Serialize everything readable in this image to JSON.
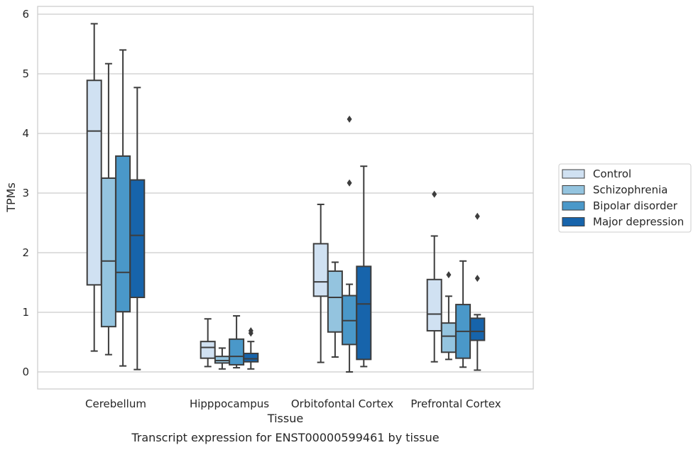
{
  "caption": "Transcript expression for ENST00000599461 by tissue",
  "chart_data": {
    "type": "box",
    "title": "",
    "xlabel": "Tissue",
    "ylabel": "TPMs",
    "ylim": [
      -0.28,
      6.13
    ],
    "yticks": [
      0,
      1,
      2,
      3,
      4,
      5,
      6
    ],
    "grid": true,
    "legend_position": "right",
    "categories": [
      "Cerebellum",
      "Hipppocampus",
      "Orbitofontal Cortex",
      "Prefrontal Cortex"
    ],
    "series": [
      {
        "name": "Control",
        "color": "#d0e1f2",
        "boxes": [
          {
            "whislo": 0.35,
            "q1": 1.46,
            "med": 4.04,
            "q3": 4.89,
            "whishi": 5.84,
            "fliers": []
          },
          {
            "whislo": 0.09,
            "q1": 0.23,
            "med": 0.41,
            "q3": 0.51,
            "whishi": 0.89,
            "fliers": []
          },
          {
            "whislo": 0.16,
            "q1": 1.27,
            "med": 1.51,
            "q3": 2.15,
            "whishi": 2.81,
            "fliers": []
          },
          {
            "whislo": 0.17,
            "q1": 0.69,
            "med": 0.97,
            "q3": 1.55,
            "whishi": 2.28,
            "fliers": [
              2.98
            ]
          }
        ]
      },
      {
        "name": "Schizophrenia",
        "color": "#94c4df",
        "boxes": [
          {
            "whislo": 0.29,
            "q1": 0.76,
            "med": 1.86,
            "q3": 3.25,
            "whishi": 5.17,
            "fliers": []
          },
          {
            "whislo": 0.05,
            "q1": 0.15,
            "med": 0.19,
            "q3": 0.26,
            "whishi": 0.4,
            "fliers": []
          },
          {
            "whislo": 0.25,
            "q1": 0.67,
            "med": 1.25,
            "q3": 1.69,
            "whishi": 1.84,
            "fliers": []
          },
          {
            "whislo": 0.21,
            "q1": 0.33,
            "med": 0.6,
            "q3": 0.82,
            "whishi": 1.27,
            "fliers": [
              1.63
            ]
          }
        ]
      },
      {
        "name": "Bipolar disorder",
        "color": "#4a98c9",
        "boxes": [
          {
            "whislo": 0.1,
            "q1": 1.01,
            "med": 1.67,
            "q3": 3.62,
            "whishi": 5.4,
            "fliers": []
          },
          {
            "whislo": 0.07,
            "q1": 0.12,
            "med": 0.26,
            "q3": 0.55,
            "whishi": 0.94,
            "fliers": []
          },
          {
            "whislo": 0.0,
            "q1": 0.46,
            "med": 0.86,
            "q3": 1.28,
            "whishi": 1.47,
            "fliers": [
              3.17,
              4.24
            ]
          },
          {
            "whislo": 0.08,
            "q1": 0.23,
            "med": 0.68,
            "q3": 1.13,
            "whishi": 1.86,
            "fliers": []
          }
        ]
      },
      {
        "name": "Major depression",
        "color": "#1764ab",
        "boxes": [
          {
            "whislo": 0.04,
            "q1": 1.25,
            "med": 2.29,
            "q3": 3.22,
            "whishi": 4.77,
            "fliers": []
          },
          {
            "whislo": 0.05,
            "q1": 0.17,
            "med": 0.22,
            "q3": 0.31,
            "whishi": 0.51,
            "fliers": [
              0.65,
              0.69
            ]
          },
          {
            "whislo": 0.09,
            "q1": 0.21,
            "med": 1.14,
            "q3": 1.77,
            "whishi": 3.45,
            "fliers": []
          },
          {
            "whislo": 0.03,
            "q1": 0.53,
            "med": 0.68,
            "q3": 0.9,
            "whishi": 0.96,
            "fliers": [
              1.57,
              2.61
            ]
          }
        ]
      }
    ]
  }
}
